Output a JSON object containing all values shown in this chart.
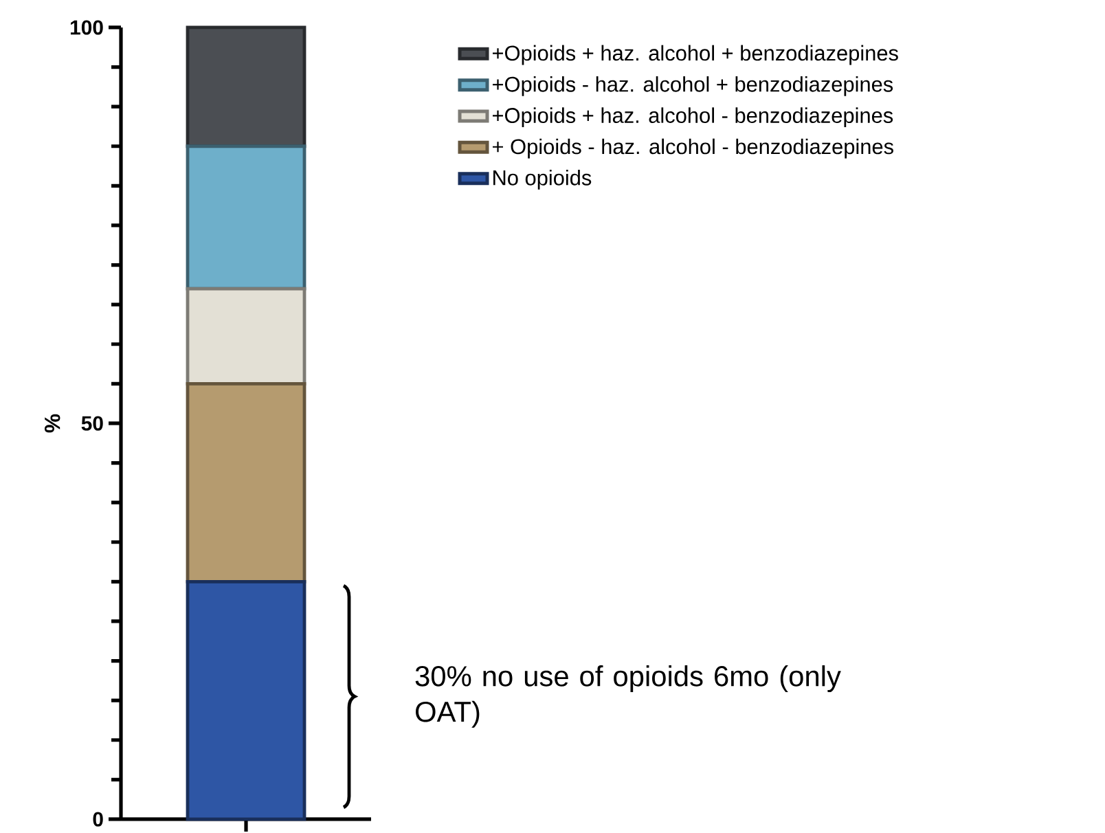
{
  "chart_data": {
    "type": "bar",
    "stacked": true,
    "ylabel": "%",
    "categories": [
      null
    ],
    "series": [
      {
        "name": "No opioids",
        "color": "#2e56a5",
        "values": [
          30
        ]
      },
      {
        "name": "+ Opioids - haz. alcohol - benzodiazepines",
        "color": "#b59b6f",
        "values": [
          25
        ]
      },
      {
        "name": "+Opioids + haz. alcohol - benzodiazepines",
        "color": "#e3e0d5",
        "values": [
          12
        ]
      },
      {
        "name": "+Opioids - haz. alcohol + benzodiazepines",
        "color": "#6eafca",
        "values": [
          18
        ]
      },
      {
        "name": "+Opioids + haz. alcohol + benzodiazepines",
        "color": "#4b4e53",
        "values": [
          15
        ]
      }
    ],
    "ylim": [
      0,
      100
    ],
    "yticks": [
      0,
      {
        "value": 5,
        "label": null
      },
      {
        "value": 10,
        "label": null
      },
      {
        "value": 15,
        "label": null
      },
      {
        "value": 20,
        "label": null
      },
      {
        "value": 25,
        "label": null
      },
      {
        "value": 30,
        "label": null
      },
      {
        "value": 35,
        "label": null
      },
      {
        "value": 40,
        "label": null
      },
      {
        "value": 45,
        "label": null
      },
      50,
      {
        "value": 55,
        "label": null
      },
      {
        "value": 60,
        "label": null
      },
      {
        "value": 65,
        "label": null
      },
      {
        "value": 70,
        "label": null
      },
      {
        "value": 75,
        "label": null
      },
      {
        "value": 80,
        "label": null
      },
      {
        "value": 85,
        "label": null
      },
      {
        "value": 90,
        "label": null
      },
      {
        "value": 95,
        "label": null
      },
      100
    ],
    "legend": "top right",
    "annotations": [
      "30% no use of opioids 6mo (only OAT)"
    ]
  }
}
